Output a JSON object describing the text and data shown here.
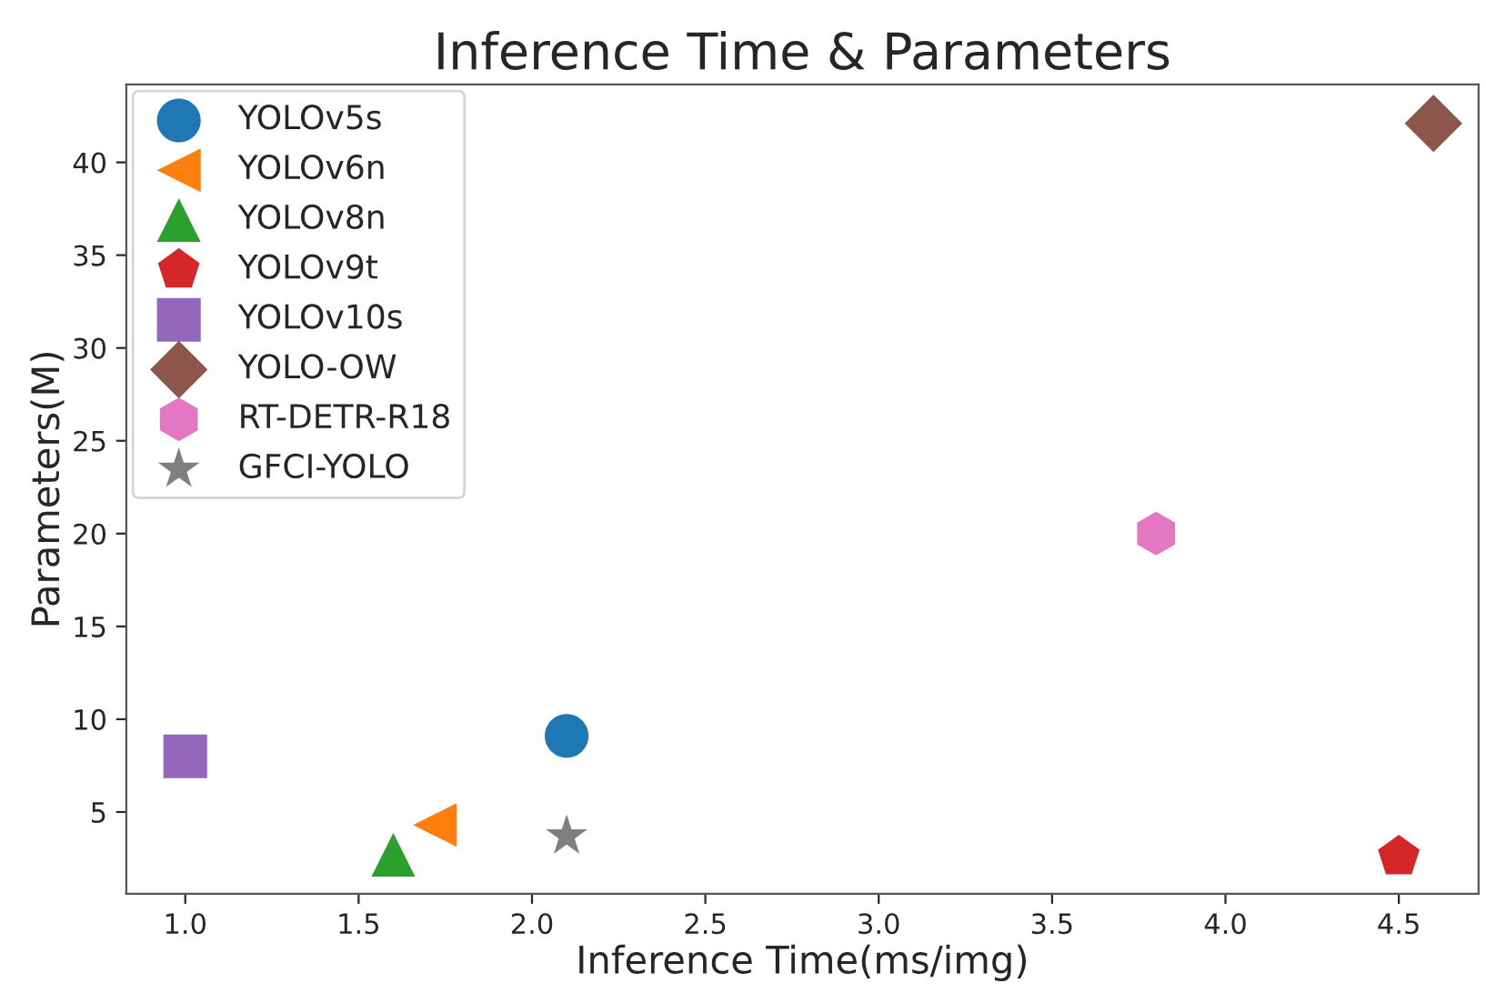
{
  "chart_data": {
    "type": "scatter",
    "title": "Inference Time & Parameters",
    "xlabel": "Inference Time(ms/img)",
    "ylabel": "Parameters(M)",
    "series": [
      {
        "name": "YOLOv5s",
        "color": "#1f77b4",
        "marker": "circle",
        "x": [
          2.1
        ],
        "values": [
          9.1
        ]
      },
      {
        "name": "YOLOv6n",
        "color": "#ff7f0e",
        "marker": "triangle_left",
        "x": [
          1.72
        ],
        "values": [
          4.3
        ]
      },
      {
        "name": "YOLOv8n",
        "color": "#2ca02c",
        "marker": "triangle",
        "x": [
          1.6
        ],
        "values": [
          2.7
        ]
      },
      {
        "name": "YOLOv9t",
        "color": "#d62728",
        "x": [
          4.5
        ],
        "values": [
          2.6
        ]
      },
      {
        "name": "YOLOv10s",
        "color": "#9467bd",
        "marker": "square",
        "x": [
          1.0
        ],
        "values": [
          8.0
        ]
      },
      {
        "name": "YOLO-OW",
        "color": "#8c564b",
        "marker": "diamond",
        "x": [
          4.6
        ],
        "values": [
          42.1
        ]
      },
      {
        "name": "RT-DETR-R18",
        "color": "#e377c2",
        "x": [
          3.8
        ],
        "values": [
          20.0
        ]
      },
      {
        "name": "GFCI-YOLO",
        "color": "#7f7f7f",
        "marker": "star",
        "x": [
          2.1
        ],
        "values": [
          3.7
        ]
      }
    ],
    "xlim": [
      0.83,
      4.73
    ],
    "ylim": [
      0.6,
      44.2
    ],
    "xticks": [
      {
        "value": 1.0,
        "label": "1.0"
      },
      {
        "value": 1.5,
        "label": "1.5"
      },
      {
        "value": 2.0,
        "label": "2.0"
      },
      {
        "value": 2.5,
        "label": "2.5"
      },
      {
        "value": 3.0,
        "label": "3.0"
      },
      {
        "value": 3.5,
        "label": "3.5"
      },
      {
        "value": 4.0,
        "label": "4.0"
      },
      {
        "value": 4.5,
        "label": "4.5"
      }
    ],
    "yticks": [
      5,
      10,
      15,
      20,
      25,
      30,
      35,
      40
    ],
    "grid": false,
    "legend": "top left"
  }
}
